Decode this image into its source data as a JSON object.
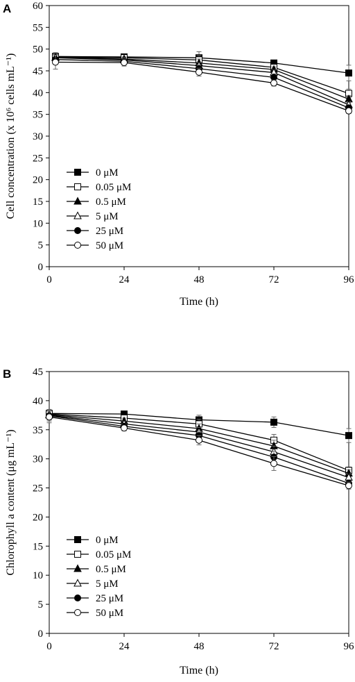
{
  "chart_data": [
    {
      "type": "line",
      "panel": "A",
      "xlabel": "Time (h)",
      "ylabel": "Cell concentration (x 10⁶ cells mL⁻¹)",
      "x": [
        2,
        24,
        48,
        72,
        96
      ],
      "xlim": [
        0,
        96
      ],
      "ylim": [
        0,
        60
      ],
      "xticks": [
        0,
        24,
        48,
        72,
        96
      ],
      "yticks": [
        0,
        5,
        10,
        15,
        20,
        25,
        30,
        35,
        40,
        45,
        50,
        55,
        60
      ],
      "grid": false,
      "legend": "left",
      "series": [
        {
          "name": "0 μM",
          "marker": "square-filled",
          "values": [
            48.3,
            48.2,
            48.0,
            46.8,
            44.5
          ],
          "err": [
            0.9,
            0.5,
            1.4,
            0.6,
            1.8
          ]
        },
        {
          "name": "0.05 μM",
          "marker": "square-open",
          "values": [
            48.2,
            48.0,
            47.5,
            45.8,
            39.8
          ],
          "err": [
            0.8,
            0.5,
            1.0,
            0.6,
            1.0
          ]
        },
        {
          "name": "0.5 μM",
          "marker": "triangle-filled",
          "values": [
            48.1,
            47.7,
            46.8,
            45.3,
            38.5
          ],
          "err": [
            0.7,
            0.5,
            0.9,
            0.6,
            0.8
          ]
        },
        {
          "name": "5 μM",
          "marker": "triangle-open",
          "values": [
            48.0,
            47.5,
            46.2,
            44.6,
            37.2
          ],
          "err": [
            0.7,
            0.5,
            0.8,
            0.6,
            0.7
          ]
        },
        {
          "name": "25 μM",
          "marker": "circle-filled",
          "values": [
            47.6,
            47.2,
            45.5,
            43.5,
            36.5
          ],
          "err": [
            1.0,
            0.7,
            0.9,
            0.8,
            0.6
          ]
        },
        {
          "name": "50 μM",
          "marker": "circle-open",
          "values": [
            47.0,
            46.9,
            44.7,
            42.2,
            35.8
          ],
          "err": [
            1.6,
            0.8,
            0.9,
            0.7,
            0.6
          ]
        }
      ]
    },
    {
      "type": "line",
      "panel": "B",
      "xlabel": "Time (h)",
      "ylabel": "Chlorophyll a content (μg mL⁻¹)",
      "x": [
        0,
        24,
        48,
        72,
        96
      ],
      "xlim": [
        0,
        96
      ],
      "ylim": [
        0,
        45
      ],
      "xticks": [
        0,
        24,
        48,
        72,
        96
      ],
      "yticks": [
        0,
        5,
        10,
        15,
        20,
        25,
        30,
        35,
        40,
        45
      ],
      "grid": false,
      "legend": "left",
      "series": [
        {
          "name": "0 μM",
          "marker": "square-filled",
          "values": [
            37.8,
            37.7,
            36.7,
            36.3,
            34.0
          ],
          "err": [
            0.7,
            0.5,
            0.8,
            0.9,
            1.2
          ]
        },
        {
          "name": "0.05 μM",
          "marker": "square-open",
          "values": [
            37.7,
            37.0,
            36.0,
            33.2,
            28.0
          ],
          "err": [
            0.7,
            0.5,
            0.8,
            1.0,
            0.6
          ]
        },
        {
          "name": "0.5 μM",
          "marker": "triangle-filled",
          "values": [
            37.6,
            36.5,
            35.2,
            32.2,
            27.5
          ],
          "err": [
            0.8,
            0.5,
            0.8,
            1.0,
            0.6
          ]
        },
        {
          "name": "5 μM",
          "marker": "triangle-open",
          "values": [
            37.5,
            36.0,
            34.6,
            31.2,
            26.8
          ],
          "err": [
            0.8,
            0.5,
            0.8,
            1.0,
            0.6
          ]
        },
        {
          "name": "25 μM",
          "marker": "circle-filled",
          "values": [
            37.4,
            35.6,
            34.0,
            30.3,
            25.8
          ],
          "err": [
            0.9,
            0.5,
            0.8,
            1.0,
            0.6
          ]
        },
        {
          "name": "50 μM",
          "marker": "circle-open",
          "values": [
            37.2,
            35.3,
            33.2,
            29.2,
            25.4
          ],
          "err": [
            1.0,
            0.5,
            0.8,
            1.2,
            0.6
          ]
        }
      ]
    }
  ]
}
